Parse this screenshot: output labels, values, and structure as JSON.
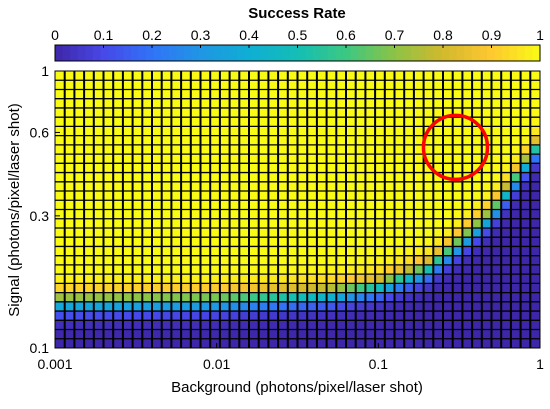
{
  "chart_data": {
    "type": "heatmap",
    "colorbar": {
      "title": "Success Rate",
      "ticks": [
        "0",
        "0.1",
        "0.2",
        "0.3",
        "0.4",
        "0.5",
        "0.6",
        "0.7",
        "0.8",
        "0.9",
        "1"
      ],
      "range": [
        0,
        1
      ],
      "position": "top",
      "colormap": "parula"
    },
    "x_axis": {
      "label": "Background (photons/pixel/laser shot)",
      "scale": "log",
      "range": [
        0.001,
        1
      ],
      "ticks": [
        0.001,
        0.01,
        0.1,
        1
      ],
      "tick_labels": [
        "0.001",
        "0.01",
        "0.1",
        "1"
      ]
    },
    "y_axis": {
      "label": "Signal (photons/pixel/laser shot)",
      "scale": "log",
      "range": [
        0.1,
        1
      ],
      "ticks": [
        0.1,
        0.3,
        0.6,
        1
      ],
      "tick_labels": [
        "0.1",
        "0.3",
        "0.6",
        "1"
      ]
    },
    "grid": {
      "columns": 50,
      "rows": 30,
      "cell_edges": true,
      "edge_color": "#000000"
    },
    "success_boundary": {
      "description": "success rate transitions from ~0 at low signal to ~1 above a threshold that rises with background",
      "points": [
        {
          "background": 0.001,
          "signal_threshold": 0.145
        },
        {
          "background": 0.01,
          "signal_threshold": 0.147
        },
        {
          "background": 0.05,
          "signal_threshold": 0.155
        },
        {
          "background": 0.1,
          "signal_threshold": 0.165
        },
        {
          "background": 0.2,
          "signal_threshold": 0.19
        },
        {
          "background": 0.3,
          "signal_threshold": 0.23
        },
        {
          "background": 0.5,
          "signal_threshold": 0.3
        },
        {
          "background": 0.7,
          "signal_threshold": 0.4
        },
        {
          "background": 1.0,
          "signal_threshold": 0.55
        }
      ]
    },
    "annotations": [
      {
        "shape": "circle",
        "color": "#ff0000",
        "center_background": 0.3,
        "center_signal": 0.53
      }
    ]
  }
}
